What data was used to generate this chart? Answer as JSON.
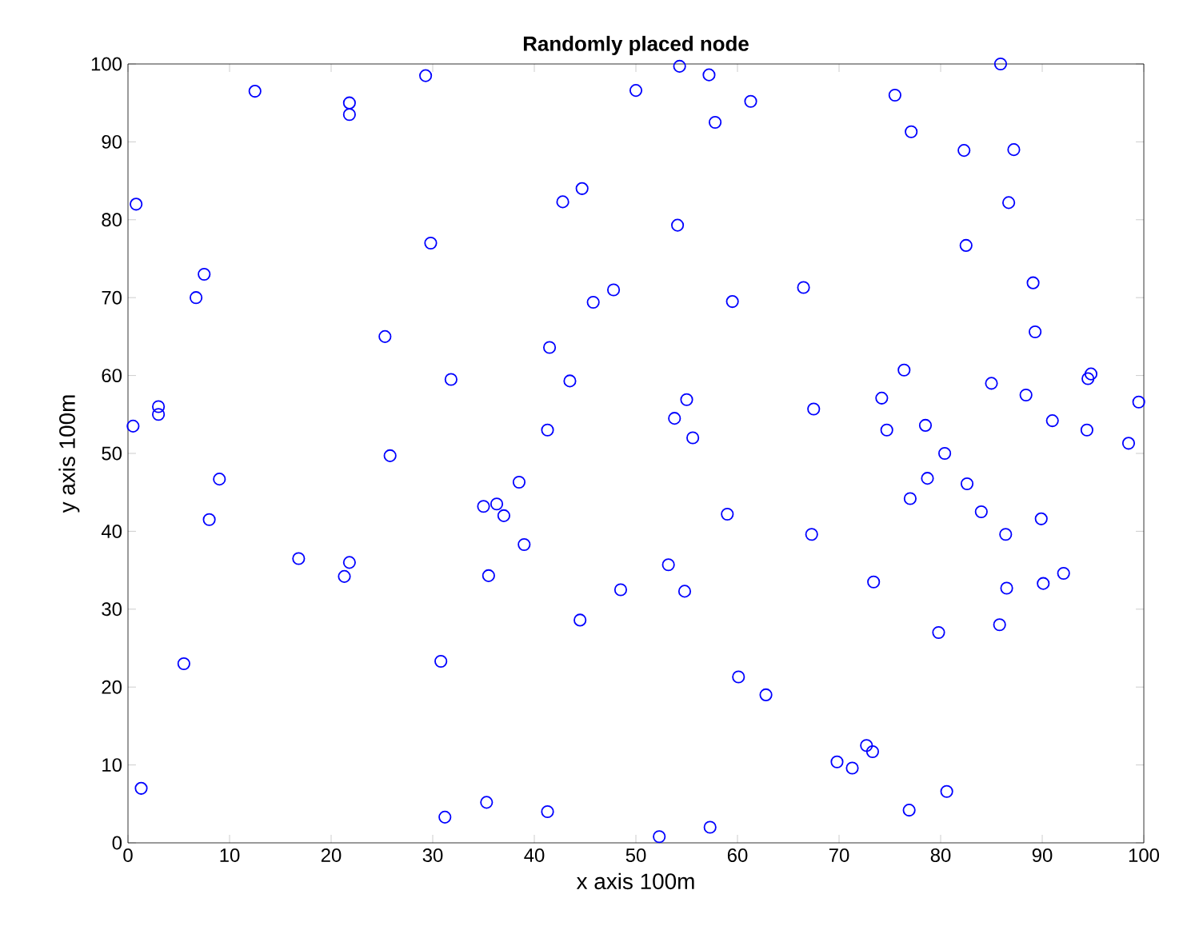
{
  "chart_data": {
    "type": "scatter",
    "title": "Randomly placed node",
    "xlabel": "x axis 100m",
    "ylabel": "y axis 100m",
    "marker": "circle",
    "xlim": [
      0,
      100
    ],
    "ylim": [
      0,
      100
    ],
    "xticks": [
      0,
      10,
      20,
      30,
      40,
      50,
      60,
      70,
      80,
      90,
      100
    ],
    "yticks": [
      0,
      10,
      20,
      30,
      40,
      50,
      60,
      70,
      80,
      90,
      100
    ],
    "series": [
      {
        "color": "#0000ff",
        "x": [
          0.5,
          0.8,
          1.3,
          3,
          3,
          5.5,
          6.7,
          7.5,
          8,
          9,
          12.5,
          16.8,
          21.3,
          21.8,
          21.8,
          21.8,
          25.3,
          25.8,
          29.3,
          29.8,
          30.8,
          31.2,
          31.8,
          35,
          35.3,
          35.5,
          36.3,
          37,
          38.5,
          39,
          41.3,
          41.3,
          41.5,
          42.8,
          43.5,
          44.5,
          44.7,
          45.8,
          47.8,
          48.5,
          50,
          52.3,
          53.2,
          53.8,
          54.1,
          54.3,
          54.8,
          55,
          55.6,
          57.2,
          57.3,
          57.8,
          59,
          59.5,
          60.1,
          61.3,
          62.8,
          66.5,
          67.3,
          67.5,
          69.8,
          71.3,
          72.7,
          73.3,
          73.4,
          74.2,
          74.7,
          75.5,
          76.4,
          76.9,
          77,
          77.1,
          78.5,
          78.7,
          79.8,
          80.4,
          80.6,
          82.3,
          82.5,
          82.6,
          84,
          85,
          85.8,
          85.9,
          86.4,
          86.5,
          86.7,
          87.2,
          88.4,
          89.1,
          89.3,
          89.9,
          90.1,
          91,
          92.1,
          94.4,
          94.5,
          94.8,
          98.5,
          99.5
        ],
        "values": [
          53.5,
          82,
          7,
          56,
          55,
          23,
          70,
          73,
          41.5,
          46.7,
          96.5,
          36.5,
          34.2,
          36,
          95,
          93.5,
          65,
          49.7,
          98.5,
          77,
          23.3,
          3.3,
          59.5,
          43.2,
          5.2,
          34.3,
          43.5,
          42,
          46.3,
          38.3,
          53,
          4,
          63.6,
          82.3,
          59.3,
          28.6,
          84,
          69.4,
          71,
          32.5,
          96.6,
          0.8,
          35.7,
          54.5,
          79.3,
          99.7,
          32.3,
          56.9,
          52,
          98.6,
          2,
          92.5,
          42.2,
          69.5,
          21.3,
          95.2,
          19,
          71.3,
          39.6,
          55.7,
          10.4,
          9.6,
          12.5,
          11.7,
          33.5,
          57.1,
          53,
          96,
          60.7,
          4.2,
          44.2,
          91.3,
          53.6,
          46.8,
          27,
          50,
          6.6,
          88.9,
          76.7,
          46.1,
          42.5,
          59,
          28,
          100,
          39.6,
          32.7,
          82.2,
          89,
          57.5,
          71.9,
          65.6,
          41.6,
          33.3,
          54.2,
          34.6,
          53,
          59.6,
          60.2,
          51.3,
          56.6
        ]
      }
    ]
  }
}
